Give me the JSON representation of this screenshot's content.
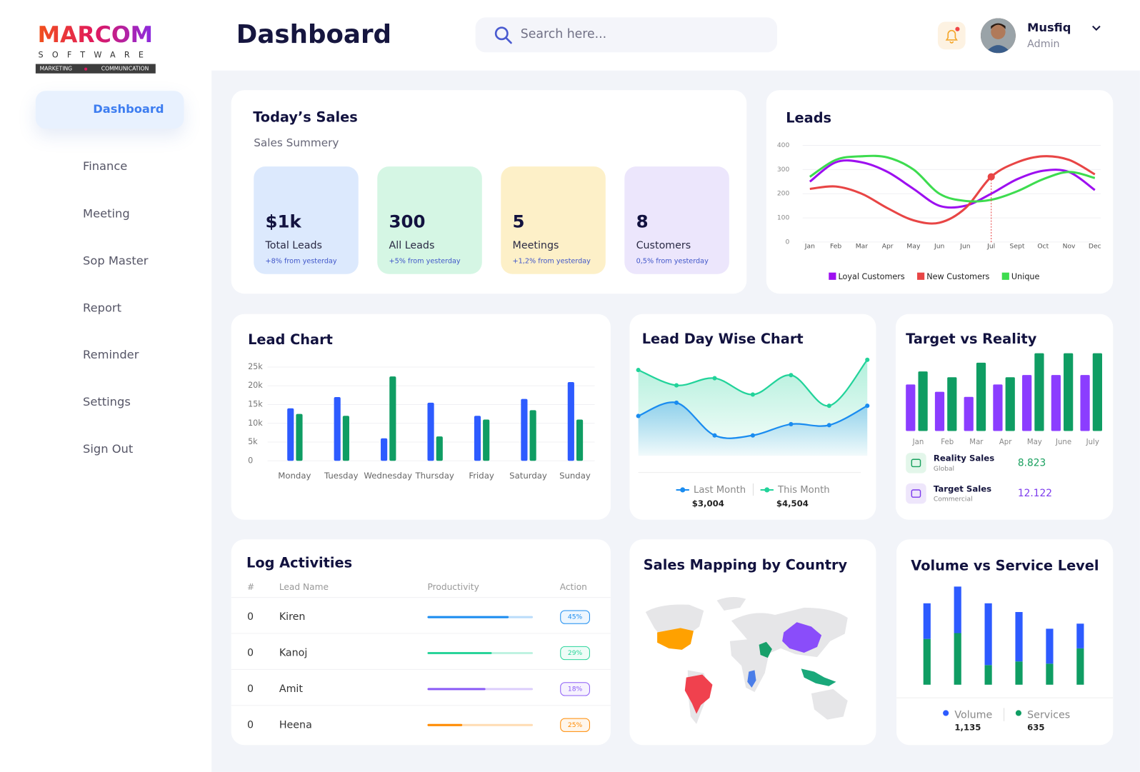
{
  "brand": {
    "name": "MARCOM",
    "sub": "SOFTWARE",
    "tag_left": "MARKETING",
    "tag_right": "COMMUNICATION"
  },
  "header": {
    "title": "Dashboard",
    "search": "Search here...",
    "user": "Musfiq",
    "role": "Admin"
  },
  "nav": [
    "Dashboard",
    "Finance",
    "Meeting",
    "Sop Master",
    "Report",
    "Reminder",
    "Settings",
    "Sign Out"
  ],
  "sales": {
    "title": "Today’s Sales",
    "subtitle": "Sales Summery",
    "cards": [
      {
        "value": "$1k",
        "label": "Total Leads",
        "note": "+8% from yesterday"
      },
      {
        "value": "300",
        "label": "All Leads",
        "note": "+5% from yesterday"
      },
      {
        "value": "5",
        "label": "Meetings",
        "note": "+1,2% from yesterday"
      },
      {
        "value": "8",
        "label": "Customers",
        "note": "0,5% from yesterday"
      }
    ]
  },
  "leads": {
    "type": "line",
    "title": "Leads",
    "categories": [
      "Jan",
      "Feb",
      "Mar",
      "Apr",
      "May",
      "Jun",
      "Jun",
      "Jul",
      "Sept",
      "Oct",
      "Nov",
      "Dec"
    ],
    "ylim": [
      0,
      400
    ],
    "yticks": [
      0,
      100,
      200,
      300,
      400
    ],
    "grid": true,
    "marker": {
      "series": 1,
      "index": 7
    },
    "series": [
      {
        "name": "Loyal Customers",
        "color": "#9d0ff0",
        "values": [
          250,
          330,
          330,
          290,
          220,
          150,
          150,
          200,
          260,
          295,
          290,
          215
        ]
      },
      {
        "name": "New Customers",
        "color": "#e84545",
        "values": [
          220,
          230,
          200,
          140,
          90,
          80,
          140,
          270,
          330,
          355,
          340,
          280
        ]
      },
      {
        "name": "Unique",
        "color": "#3ddc4f",
        "values": [
          270,
          340,
          355,
          350,
          300,
          200,
          170,
          175,
          210,
          260,
          290,
          265
        ]
      }
    ]
  },
  "lead_chart": {
    "type": "bar",
    "title": "Lead Chart",
    "categories": [
      "Monday",
      "Tuesday",
      "Wednesday",
      "Thursday",
      "Friday",
      "Saturday",
      "Sunday"
    ],
    "ylim": [
      0,
      25000
    ],
    "grid": true,
    "yticks": [
      0,
      {
        "value": 5000,
        "label": "5k"
      },
      {
        "value": 10000,
        "label": "10k"
      },
      {
        "value": 15000,
        "label": "15k"
      },
      {
        "value": 20000,
        "label": "20k"
      },
      {
        "value": 25000,
        "label": "25k"
      }
    ],
    "series": [
      {
        "color": "#2d5bff",
        "values": [
          14000,
          17000,
          6000,
          15500,
          12000,
          16500,
          21000
        ]
      },
      {
        "color": "#0f9d63",
        "values": [
          12500,
          12000,
          22500,
          6500,
          11000,
          13500,
          11000
        ]
      }
    ]
  },
  "lead_day": {
    "type": "area",
    "title": "Lead Day Wise Chart",
    "series": [
      {
        "name": "Last Month",
        "color": "#1a8cf0",
        "values": [
          34,
          47,
          15,
          15,
          26,
          25,
          44
        ],
        "total": "$3,004"
      },
      {
        "name": "This Month",
        "color": "#22d39a",
        "values": [
          79,
          64,
          71,
          55,
          74,
          44,
          89
        ],
        "total": "$4,504"
      }
    ]
  },
  "target": {
    "type": "bar",
    "title": "Target vs Reality",
    "categories": [
      "Jan",
      "Feb",
      "Mar",
      "Apr",
      "May",
      "June",
      "July"
    ],
    "series": [
      {
        "color": "#8b3dff",
        "values": [
          64,
          54,
          47,
          64,
          77,
          77,
          77
        ]
      },
      {
        "color": "#0f9d63",
        "values": [
          82,
          74,
          94,
          74,
          107,
          107,
          107
        ]
      }
    ],
    "summary": [
      {
        "label": "Reality Sales",
        "sub": "Global",
        "value": "8.823"
      },
      {
        "label": "Target Sales",
        "sub": "Commercial",
        "value": "12.122"
      }
    ]
  },
  "log": {
    "title": "Log Activities",
    "columns": [
      "#",
      "Lead Name",
      "Productivity",
      "Action"
    ],
    "rows": [
      {
        "id": 0,
        "name": "Kiren",
        "progress": 77,
        "action": "45%",
        "color": "#1a8cf0"
      },
      {
        "id": 0,
        "name": "Kanoj",
        "progress": 61,
        "action": "29%",
        "color": "#2ad49a"
      },
      {
        "id": 0,
        "name": "Amit",
        "progress": 55,
        "action": "18%",
        "color": "#8b5cf6"
      },
      {
        "id": 0,
        "name": "Heena",
        "progress": 33,
        "action": "25%",
        "color": "#ff8a00"
      }
    ]
  },
  "map": {
    "title": "Sales Mapping by Country"
  },
  "volume": {
    "type": "stacked_bar",
    "title": "Volume vs Service Level",
    "series": [
      {
        "name": "Volume",
        "color": "#2d5bff",
        "values": [
          49,
          64,
          85,
          68,
          48,
          34
        ],
        "total": "1,135"
      },
      {
        "name": "Services",
        "color": "#0f9d63",
        "values": [
          63,
          71,
          27,
          32,
          29,
          50
        ],
        "total": "635"
      }
    ]
  }
}
